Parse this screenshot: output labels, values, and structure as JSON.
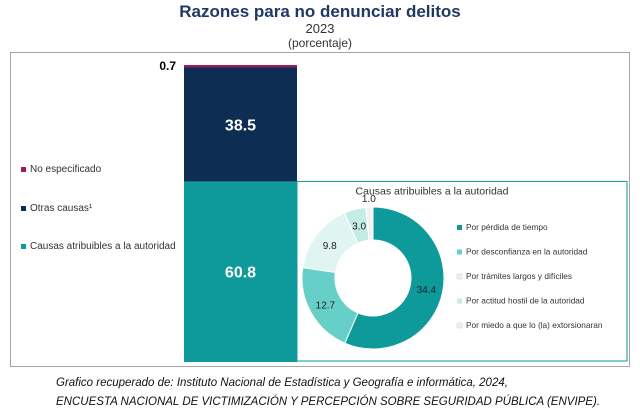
{
  "header": {
    "title": "Razones para no denunciar delitos",
    "year": "2023",
    "unit": "(porcentaje)"
  },
  "chart_data": [
    {
      "type": "bar",
      "stacked": true,
      "categories": [
        ""
      ],
      "series": [
        {
          "name": "Causas atribuibles a la autoridad",
          "values": [
            60.8
          ],
          "color": "#0e9a9a",
          "label": "60.8"
        },
        {
          "name": "Otras causas¹",
          "values": [
            38.5
          ],
          "color": "#0d2d52",
          "label": "38.5"
        },
        {
          "name": "No especificado",
          "values": [
            0.7
          ],
          "color": "#a3195b",
          "label": "0.7"
        }
      ],
      "ylim": [
        0,
        100
      ],
      "legend": "left",
      "grid": false
    },
    {
      "type": "pie",
      "donut": true,
      "title": "Causas atribuibles a la autoridad",
      "slices": [
        {
          "name": "Por pérdida de tiempo",
          "value": 34.4,
          "color": "#0e9a9a",
          "label": "34.4"
        },
        {
          "name": "Por desconfianza en la autoridad",
          "value": 12.7,
          "color": "#66d0c8",
          "label": "12.7"
        },
        {
          "name": "Por trámites largos y difíciles",
          "value": 9.8,
          "color": "#e0f4f2",
          "label": "9.8"
        },
        {
          "name": "Por actitud hostil de la autoridad",
          "value": 3.0,
          "color": "#c3ebe7",
          "label": "3.0"
        },
        {
          "name": "Por miedo a que lo (la) extorsionaran",
          "value": 1.0,
          "color": "#f1f1f1",
          "label": "1.0"
        }
      ],
      "legend": "right"
    }
  ],
  "source": {
    "line1": "Grafico recuperado de: Instituto Nacional de Estadística y Geografía e informática, 2024,",
    "line2": "ENCUESTA NACIONAL DE VICTIMIZACIÓN Y  PERCEPCIÓN SOBRE SEGURIDAD PÚBLICA (ENVIPE)."
  }
}
